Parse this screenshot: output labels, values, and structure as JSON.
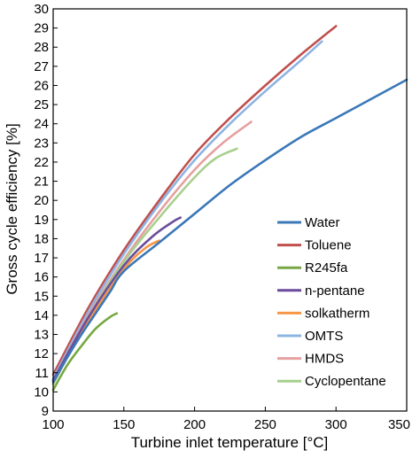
{
  "chart_data": {
    "type": "line",
    "title": "",
    "xlabel": "Turbine inlet temperature [°C]",
    "ylabel": "Gross cycle efficiency [%]",
    "xlim": [
      100,
      350
    ],
    "ylim": [
      9,
      30
    ],
    "xticks": [
      100,
      150,
      200,
      250,
      300,
      350
    ],
    "yticks": [
      9,
      10,
      11,
      12,
      13,
      14,
      15,
      16,
      17,
      18,
      19,
      20,
      21,
      22,
      23,
      24,
      25,
      26,
      27,
      28,
      29,
      30
    ],
    "grid": false,
    "legend_position": "right",
    "series": [
      {
        "name": "Water",
        "color": "#3b78b8",
        "x": [
          100,
          110,
          120,
          130,
          140,
          150,
          175,
          200,
          225,
          250,
          275,
          300,
          325,
          350
        ],
        "y": [
          10.5,
          11.8,
          13.0,
          14.1,
          15.2,
          16.3,
          17.8,
          19.3,
          20.8,
          22.1,
          23.3,
          24.3,
          25.3,
          26.3
        ]
      },
      {
        "name": "Toluene",
        "color": "#c0504d",
        "x": [
          100,
          125,
          150,
          175,
          200,
          225,
          250,
          275,
          300
        ],
        "y": [
          10.9,
          14.4,
          17.4,
          20.0,
          22.4,
          24.3,
          26.0,
          27.6,
          29.1
        ]
      },
      {
        "name": "R245fa",
        "color": "#77a843",
        "x": [
          100,
          110,
          120,
          130,
          140,
          145
        ],
        "y": [
          10.1,
          11.4,
          12.4,
          13.3,
          13.9,
          14.1
        ]
      },
      {
        "name": "n-pentane",
        "color": "#6a4c9c",
        "x": [
          100,
          125,
          150,
          170,
          185,
          190
        ],
        "y": [
          10.6,
          13.9,
          16.6,
          18.1,
          18.9,
          19.1
        ]
      },
      {
        "name": "solkatherm",
        "color": "#f79646",
        "x": [
          100,
          125,
          150,
          165,
          175
        ],
        "y": [
          10.5,
          13.7,
          16.4,
          17.5,
          17.9
        ]
      },
      {
        "name": "OMTS",
        "color": "#8eb4e3",
        "x": [
          100,
          125,
          150,
          175,
          200,
          225,
          250,
          275,
          290
        ],
        "y": [
          10.7,
          14.2,
          17.2,
          19.8,
          22.1,
          24.0,
          25.7,
          27.3,
          28.3
        ]
      },
      {
        "name": "HMDS",
        "color": "#e6a0a0",
        "x": [
          100,
          125,
          150,
          175,
          200,
          220,
          240
        ],
        "y": [
          10.6,
          14.0,
          16.9,
          19.4,
          21.6,
          23.0,
          24.1
        ]
      },
      {
        "name": "Cyclopentane",
        "color": "#a8d08d",
        "x": [
          100,
          125,
          150,
          175,
          200,
          215,
          230
        ],
        "y": [
          10.4,
          13.9,
          16.8,
          19.1,
          21.2,
          22.2,
          22.7
        ]
      }
    ]
  }
}
